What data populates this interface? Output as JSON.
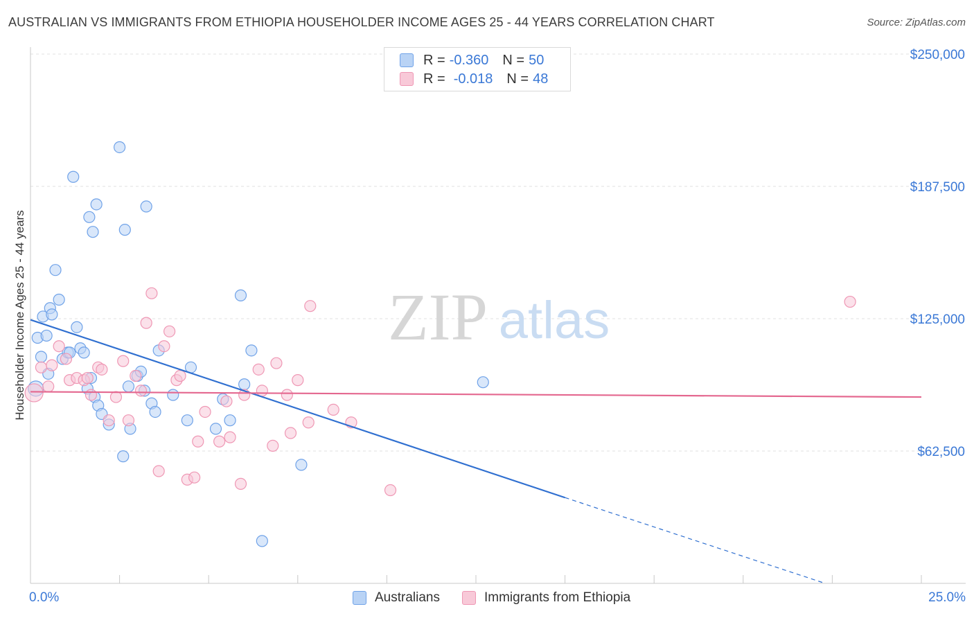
{
  "title": "AUSTRALIAN VS IMMIGRANTS FROM ETHIOPIA HOUSEHOLDER INCOME AGES 25 - 44 YEARS CORRELATION CHART",
  "source": "Source: ZipAtlas.com",
  "watermark": {
    "zip": "ZIP",
    "atlas": "atlas"
  },
  "legend": {
    "rows": [
      {
        "r_label": "R =",
        "r_value": "-0.360",
        "n_label": "N =",
        "n_value": "50",
        "color": "#6fa2e8",
        "fill": "#b9d3f5"
      },
      {
        "r_label": "R =",
        "r_value": "-0.018",
        "n_label": "N =",
        "n_value": "48",
        "color": "#ef97b4",
        "fill": "#f8c9d8"
      }
    ]
  },
  "bottom_legend": [
    "Australians",
    "Immigrants from Ethiopia"
  ],
  "x_axis": {
    "left_label": "0.0%",
    "right_label": "25.0%"
  },
  "chart_data": {
    "type": "scatter",
    "title": "AUSTRALIAN VS IMMIGRANTS FROM ETHIOPIA HOUSEHOLDER INCOME AGES 25 - 44 YEARS CORRELATION CHART",
    "xlabel": "",
    "ylabel": "Householder Income Ages 25 - 44 years",
    "xlim": [
      0,
      25
    ],
    "ylim": [
      0,
      255000
    ],
    "y_ticks": [
      62500,
      125000,
      187500,
      250000
    ],
    "y_tick_labels": [
      "$62,500",
      "$125,000",
      "$187,500",
      "$250,000"
    ],
    "grid": true,
    "series": [
      {
        "name": "Australians",
        "color": "#6fa2e8",
        "fill": "#b9d3f5",
        "line_color": "#2f6fd0",
        "trend": {
          "x0": 0,
          "y0": 124500,
          "x1": 15,
          "y1": 40500,
          "dash_to_x": 22.3,
          "dash_to_y": 0
        },
        "points": [
          [
            0.15,
            92000,
            22
          ],
          [
            0.2,
            116000,
            16
          ],
          [
            0.3,
            107000,
            16
          ],
          [
            0.35,
            126000,
            16
          ],
          [
            0.45,
            117000,
            16
          ],
          [
            0.5,
            99000,
            16
          ],
          [
            0.55,
            130000,
            16
          ],
          [
            0.6,
            127000,
            16
          ],
          [
            0.7,
            148000,
            16
          ],
          [
            0.8,
            134000,
            16
          ],
          [
            0.9,
            106000,
            16
          ],
          [
            1.05,
            109000,
            16
          ],
          [
            1.1,
            109000,
            16
          ],
          [
            1.2,
            192000,
            16
          ],
          [
            1.3,
            121000,
            16
          ],
          [
            1.4,
            111000,
            16
          ],
          [
            1.5,
            109000,
            16
          ],
          [
            1.6,
            92000,
            16
          ],
          [
            1.7,
            97000,
            16
          ],
          [
            1.8,
            88000,
            16
          ],
          [
            1.9,
            84000,
            16
          ],
          [
            2.0,
            80000,
            16
          ],
          [
            1.65,
            173000,
            16
          ],
          [
            1.75,
            166000,
            16
          ],
          [
            1.85,
            179000,
            16
          ],
          [
            2.2,
            75000,
            16
          ],
          [
            2.5,
            206000,
            16
          ],
          [
            2.6,
            60000,
            16
          ],
          [
            2.65,
            167000,
            16
          ],
          [
            2.75,
            93000,
            16
          ],
          [
            2.8,
            73000,
            16
          ],
          [
            3.0,
            98000,
            16
          ],
          [
            3.1,
            100000,
            16
          ],
          [
            3.2,
            91000,
            16
          ],
          [
            3.25,
            178000,
            16
          ],
          [
            3.4,
            85000,
            16
          ],
          [
            3.5,
            81000,
            16
          ],
          [
            3.6,
            110000,
            16
          ],
          [
            4.0,
            89000,
            16
          ],
          [
            4.4,
            77000,
            16
          ],
          [
            4.5,
            102000,
            16
          ],
          [
            5.2,
            73000,
            16
          ],
          [
            5.4,
            87000,
            16
          ],
          [
            5.6,
            77000,
            16
          ],
          [
            5.9,
            136000,
            16
          ],
          [
            6.0,
            94000,
            16
          ],
          [
            6.2,
            110000,
            16
          ],
          [
            6.5,
            20000,
            16
          ],
          [
            7.6,
            56000,
            16
          ],
          [
            12.7,
            95000,
            16
          ]
        ]
      },
      {
        "name": "Immigrants from Ethiopia",
        "color": "#ef97b4",
        "fill": "#f8c9d8",
        "line_color": "#e4678f",
        "trend": {
          "x0": 0,
          "y0": 90500,
          "x1": 25,
          "y1": 88000
        },
        "points": [
          [
            0.1,
            90000,
            26
          ],
          [
            0.3,
            102000,
            16
          ],
          [
            0.5,
            93000,
            16
          ],
          [
            0.6,
            103000,
            16
          ],
          [
            0.8,
            112000,
            16
          ],
          [
            1.0,
            106000,
            16
          ],
          [
            1.1,
            96000,
            16
          ],
          [
            1.3,
            97000,
            16
          ],
          [
            1.5,
            96000,
            16
          ],
          [
            1.6,
            97000,
            16
          ],
          [
            1.7,
            89000,
            16
          ],
          [
            1.9,
            102000,
            16
          ],
          [
            2.0,
            101000,
            16
          ],
          [
            2.2,
            77000,
            16
          ],
          [
            2.4,
            88000,
            16
          ],
          [
            2.6,
            105000,
            16
          ],
          [
            2.75,
            77000,
            16
          ],
          [
            2.95,
            98000,
            16
          ],
          [
            3.1,
            91000,
            16
          ],
          [
            3.25,
            123000,
            16
          ],
          [
            3.4,
            137000,
            16
          ],
          [
            3.6,
            53000,
            16
          ],
          [
            3.75,
            112000,
            16
          ],
          [
            3.9,
            119000,
            16
          ],
          [
            4.1,
            96000,
            16
          ],
          [
            4.2,
            98000,
            16
          ],
          [
            4.4,
            49000,
            16
          ],
          [
            4.6,
            50000,
            16
          ],
          [
            4.7,
            67000,
            16
          ],
          [
            4.9,
            81000,
            16
          ],
          [
            5.3,
            67000,
            16
          ],
          [
            5.5,
            86000,
            16
          ],
          [
            5.6,
            69000,
            16
          ],
          [
            5.9,
            47000,
            16
          ],
          [
            6.0,
            89000,
            16
          ],
          [
            6.4,
            101000,
            16
          ],
          [
            6.5,
            91000,
            16
          ],
          [
            6.8,
            65000,
            16
          ],
          [
            6.9,
            104000,
            16
          ],
          [
            7.2,
            89000,
            16
          ],
          [
            7.3,
            71000,
            16
          ],
          [
            7.5,
            96000,
            16
          ],
          [
            7.8,
            76000,
            16
          ],
          [
            7.85,
            131000,
            16
          ],
          [
            8.5,
            82000,
            16
          ],
          [
            9.0,
            76000,
            16
          ],
          [
            10.1,
            44000,
            16
          ],
          [
            23.0,
            133000,
            16
          ]
        ]
      }
    ]
  }
}
